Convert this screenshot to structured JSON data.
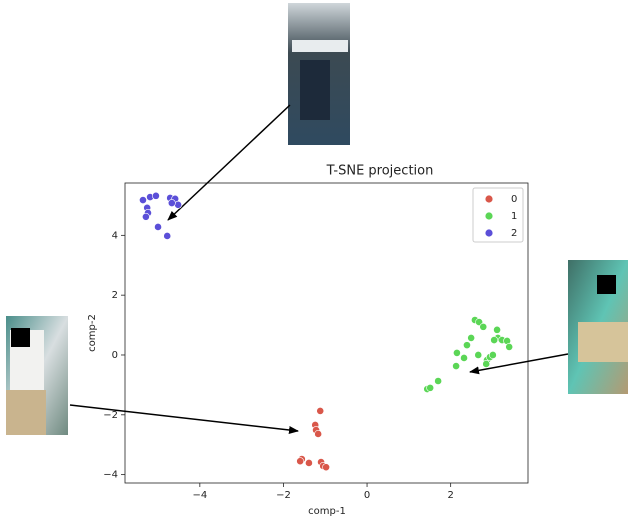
{
  "chart_data": {
    "type": "scatter",
    "title": "T-SNE projection",
    "x_label": "comp-1",
    "y_label": "comp-2",
    "xlim": [
      -5.79,
      3.85
    ],
    "ylim": [
      -4.28,
      5.75
    ],
    "xticks": [
      {
        "value": -4,
        "label": "−4"
      },
      {
        "value": -2,
        "label": "−2"
      },
      0,
      2
    ],
    "yticks": [
      {
        "value": -4,
        "label": "−4"
      },
      {
        "value": -2,
        "label": "−2"
      },
      0,
      2,
      4
    ],
    "legend": "upper right",
    "series": [
      {
        "name": "0",
        "color": "#d9574a",
        "x": [
          -1.12,
          -1.24,
          -1.22,
          -1.17,
          -1.56,
          -1.6,
          -1.39,
          -1.1,
          -1.05,
          -0.98
        ],
        "y": [
          -1.87,
          -2.34,
          -2.51,
          -2.64,
          -3.48,
          -3.55,
          -3.61,
          -3.58,
          -3.71,
          -3.75
        ]
      },
      {
        "name": "1",
        "color": "#5bd656",
        "x": [
          1.44,
          1.51,
          1.7,
          2.13,
          2.15,
          2.32,
          2.39,
          2.49,
          2.58,
          2.68,
          2.78,
          2.66,
          2.87,
          2.94,
          3.01,
          3.11,
          3.13,
          3.23,
          3.35,
          3.4,
          2.85,
          3.04
        ],
        "y": [
          -1.14,
          -1.1,
          -0.87,
          -0.37,
          0.07,
          -0.1,
          0.33,
          0.57,
          1.17,
          1.1,
          0.94,
          0.0,
          -0.17,
          -0.07,
          0.0,
          0.84,
          0.57,
          0.5,
          0.47,
          0.27,
          -0.3,
          0.5
        ]
      },
      {
        "name": "2",
        "color": "#5b4fd8",
        "x": [
          -5.36,
          -5.19,
          -5.05,
          -4.71,
          -4.59,
          -4.52,
          -4.67,
          -5.26,
          -5.24,
          -5.29,
          -5.0,
          -4.78
        ],
        "y": [
          5.18,
          5.28,
          5.32,
          5.25,
          5.22,
          5.02,
          5.08,
          4.92,
          4.75,
          4.62,
          4.28,
          3.98
        ]
      }
    ]
  }
}
